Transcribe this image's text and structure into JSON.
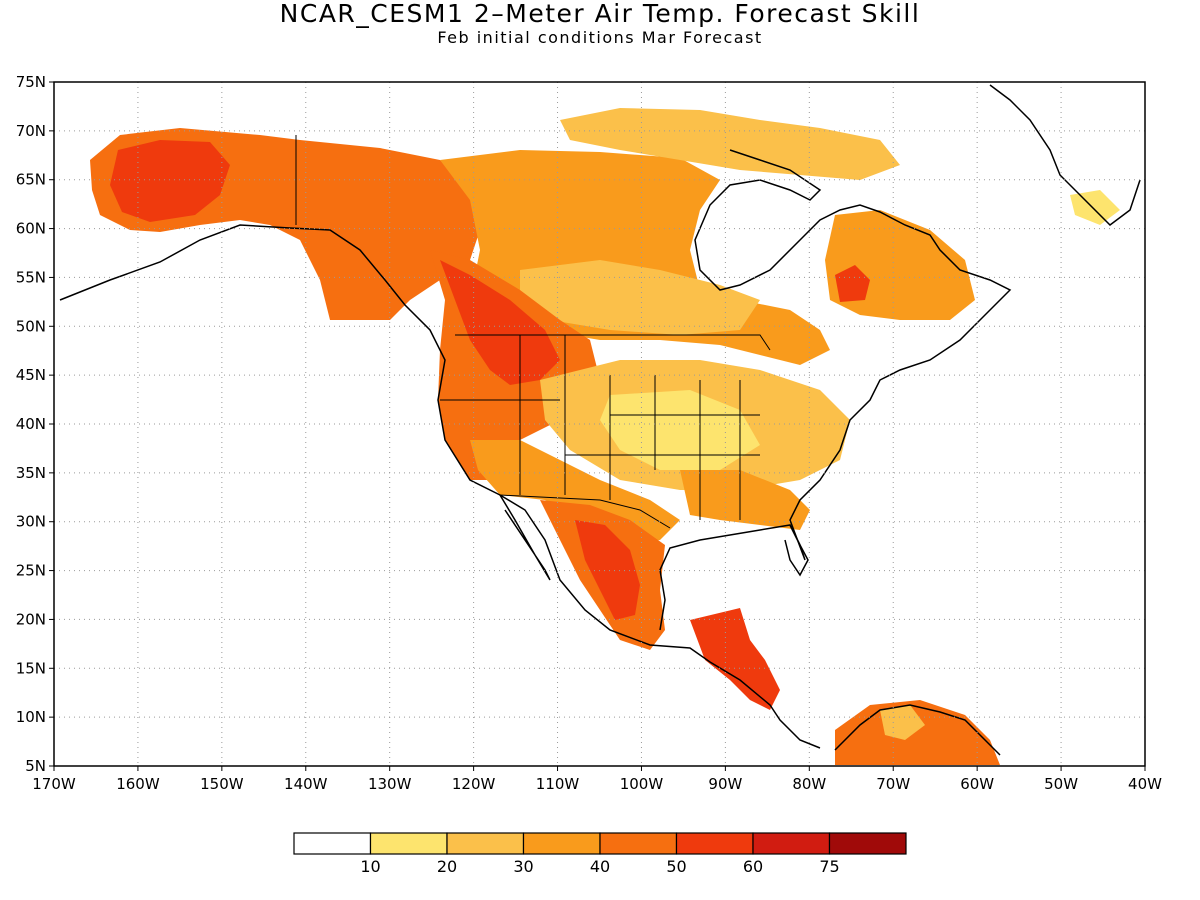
{
  "title": "NCAR_CESM1 2–Meter Air Temp. Forecast Skill",
  "subtitle": "Feb initial conditions  Mar Forecast",
  "map": {
    "region": "North America",
    "lon_range": [
      -170,
      -40
    ],
    "lat_range": [
      5,
      75
    ],
    "grid": true,
    "x_tick_labels": [
      "170W",
      "160W",
      "150W",
      "140W",
      "130W",
      "120W",
      "110W",
      "100W",
      "90W",
      "80W",
      "70W",
      "60W",
      "50W",
      "40W"
    ],
    "y_tick_labels": [
      "75N",
      "70N",
      "65N",
      "60N",
      "55N",
      "50N",
      "45N",
      "40N",
      "35N",
      "30N",
      "25N",
      "20N",
      "15N",
      "10N",
      "5N"
    ]
  },
  "legend": {
    "boundaries": [
      "10",
      "20",
      "30",
      "40",
      "50",
      "60",
      "75"
    ],
    "colors": [
      "#ffffff",
      "#fde46e",
      "#fbc04a",
      "#f99b1c",
      "#f66f10",
      "#ef3a0d",
      "#d11c11",
      "#a00a09"
    ]
  }
}
